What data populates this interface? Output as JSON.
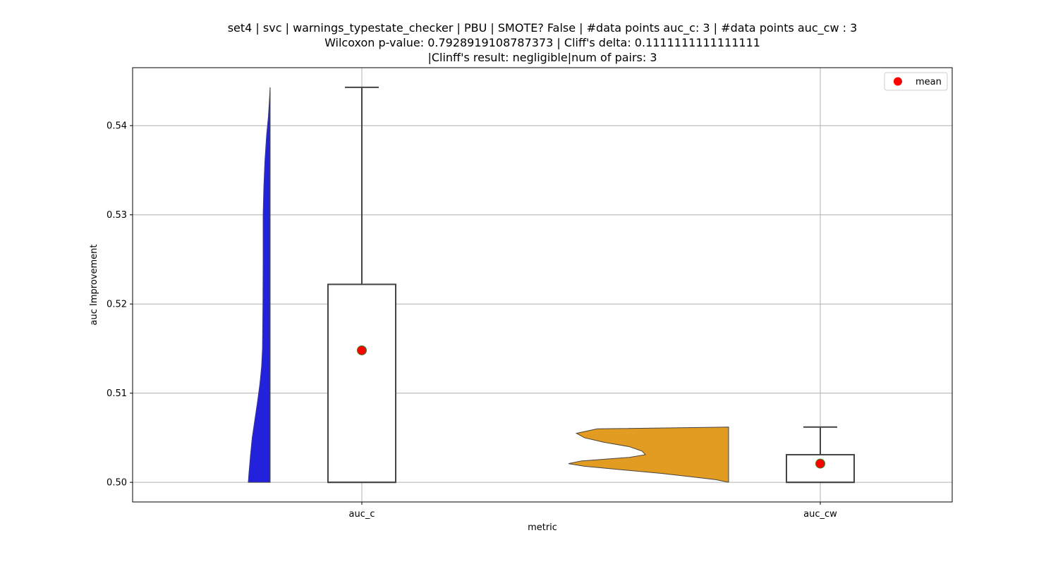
{
  "chart_data": {
    "type": "violin-box",
    "title_lines": [
      "set4 | svc | warnings_typestate_checker | PBU | SMOTE? False | #data points auc_c: 3 | #data points auc_cw : 3",
      "Wilcoxon p-value: 0.7928919108787373 | Cliff's delta: 0.1111111111111111",
      "|Clinff's result: negligible|num of pairs: 3"
    ],
    "xlabel": "metric",
    "ylabel": "auc Improvement",
    "categories": [
      "auc_c",
      "auc_cw"
    ],
    "ylim": [
      0.4978,
      0.5465
    ],
    "yticks": [
      0.5,
      0.51,
      0.52,
      0.53,
      0.54
    ],
    "ytick_labels": [
      "0.50",
      "0.51",
      "0.52",
      "0.53",
      "0.54"
    ],
    "grid": true,
    "legend": {
      "placement": "top-right",
      "entries": [
        {
          "label": "mean",
          "color": "#ff0000"
        }
      ]
    },
    "series": [
      {
        "name": "auc_c",
        "violin_color": "#2222dd",
        "violin_side": "left",
        "box": {
          "whisker_low": 0.5,
          "q1": 0.5,
          "median": 0.5,
          "q3": 0.5222,
          "whisker_high": 0.5443
        },
        "mean": 0.5148,
        "density": [
          [
            0.5,
            1.0
          ],
          [
            0.501,
            0.97
          ],
          [
            0.503,
            0.9
          ],
          [
            0.505,
            0.82
          ],
          [
            0.507,
            0.7
          ],
          [
            0.509,
            0.58
          ],
          [
            0.511,
            0.47
          ],
          [
            0.513,
            0.39
          ],
          [
            0.515,
            0.35
          ],
          [
            0.52,
            0.33
          ],
          [
            0.525,
            0.32
          ],
          [
            0.53,
            0.32
          ],
          [
            0.533,
            0.29
          ],
          [
            0.536,
            0.24
          ],
          [
            0.539,
            0.16
          ],
          [
            0.541,
            0.08
          ],
          [
            0.543,
            0.03
          ],
          [
            0.5443,
            0.0
          ]
        ]
      },
      {
        "name": "auc_cw",
        "violin_color": "#e39c22",
        "violin_side": "left",
        "box": {
          "whisker_low": 0.5,
          "q1": 0.5,
          "median": 0.5,
          "q3": 0.5031,
          "whisker_high": 0.5062
        },
        "mean": 0.5021,
        "density": [
          [
            0.5,
            0.0
          ],
          [
            0.5003,
            0.08
          ],
          [
            0.5006,
            0.22
          ],
          [
            0.501,
            0.42
          ],
          [
            0.5014,
            0.66
          ],
          [
            0.5018,
            0.9
          ],
          [
            0.5021,
            1.0
          ],
          [
            0.5024,
            0.92
          ],
          [
            0.5028,
            0.62
          ],
          [
            0.5031,
            0.52
          ],
          [
            0.5035,
            0.54
          ],
          [
            0.504,
            0.62
          ],
          [
            0.5045,
            0.78
          ],
          [
            0.505,
            0.9
          ],
          [
            0.5055,
            0.95
          ],
          [
            0.506,
            0.82
          ],
          [
            0.5062,
            0.0
          ]
        ]
      }
    ]
  }
}
